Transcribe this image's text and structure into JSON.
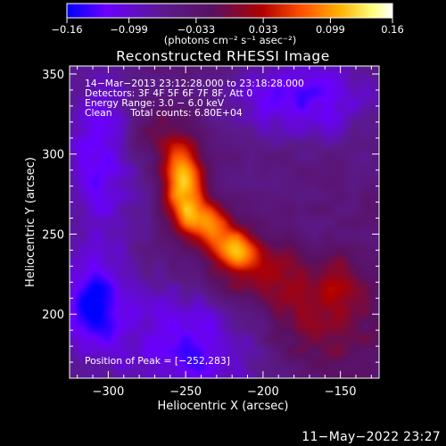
{
  "chart_data": {
    "type": "heatmap",
    "title": "Reconstructed RHESSI Image",
    "xlabel": "Heliocentric X (arcsec)",
    "ylabel": "Heliocentric Y (arcsec)",
    "xlim": [
      -325,
      -125
    ],
    "ylim": [
      160,
      355
    ],
    "x_ticks": [
      -300,
      -250,
      -200,
      -150
    ],
    "x_tick_labels": [
      "−300",
      "−250",
      "−200",
      "−150"
    ],
    "y_ticks": [
      200,
      250,
      300,
      350
    ],
    "y_tick_labels": [
      "200",
      "250",
      "300",
      "350"
    ],
    "colorbar": {
      "range": [
        -0.16,
        0.16
      ],
      "ticks": [
        -0.16,
        -0.099,
        -0.033,
        0.033,
        0.099,
        0.16
      ],
      "tick_labels": [
        "−0.16",
        "−0.099",
        "−0.033",
        "0.033",
        "0.099",
        "0.16"
      ],
      "unit_label": "(photons cm⁻² s⁻¹ asec⁻²)",
      "colors": [
        "#0000ff",
        "#6a00ff",
        "#5a1a8c",
        "#5a1060",
        "#b00000",
        "#ff5000",
        "#ffb400",
        "#ffff80",
        "#ffffff"
      ]
    },
    "annotations": {
      "line1": "14−Mar−2013 23:12:28.000 to 23:18:28.000",
      "line2": "Detectors: 3F 4F 5F 6F 7F 8F, Att 0",
      "line3": "Energy Range: 3.0 − 6.0 keV",
      "line4": "Clean      Total counts: 6.80E+04",
      "peak": "Position of Peak = [−252,283]"
    },
    "peak_position": [
      -252,
      283
    ],
    "sources": [
      {
        "x": -252,
        "y": 283,
        "sx": 9,
        "sy": 17,
        "amp": 0.16
      },
      {
        "x": -218,
        "y": 240,
        "sx": 12,
        "sy": 9,
        "amp": 0.14
      },
      {
        "x": -238,
        "y": 258,
        "sx": 12,
        "sy": 10,
        "amp": 0.13
      },
      {
        "x": -200,
        "y": 222,
        "sx": 25,
        "sy": 14,
        "amp": 0.07
      },
      {
        "x": -165,
        "y": 190,
        "sx": 30,
        "sy": 20,
        "amp": 0.055
      },
      {
        "x": -150,
        "y": 222,
        "sx": 10,
        "sy": 12,
        "amp": 0.05
      },
      {
        "x": -272,
        "y": 312,
        "sx": 14,
        "sy": 14,
        "amp": 0.045
      }
    ],
    "background": [
      {
        "x": -305,
        "y": 300,
        "sx": 18,
        "sy": 40,
        "amp": -0.08
      },
      {
        "x": -245,
        "y": 180,
        "sx": 35,
        "sy": 28,
        "amp": -0.085
      },
      {
        "x": -175,
        "y": 335,
        "sx": 35,
        "sy": 20,
        "amp": -0.08
      },
      {
        "x": -310,
        "y": 205,
        "sx": 15,
        "sy": 20,
        "amp": -0.11
      }
    ]
  },
  "footer": {
    "timestamp": "11−May−2022 23:27"
  }
}
